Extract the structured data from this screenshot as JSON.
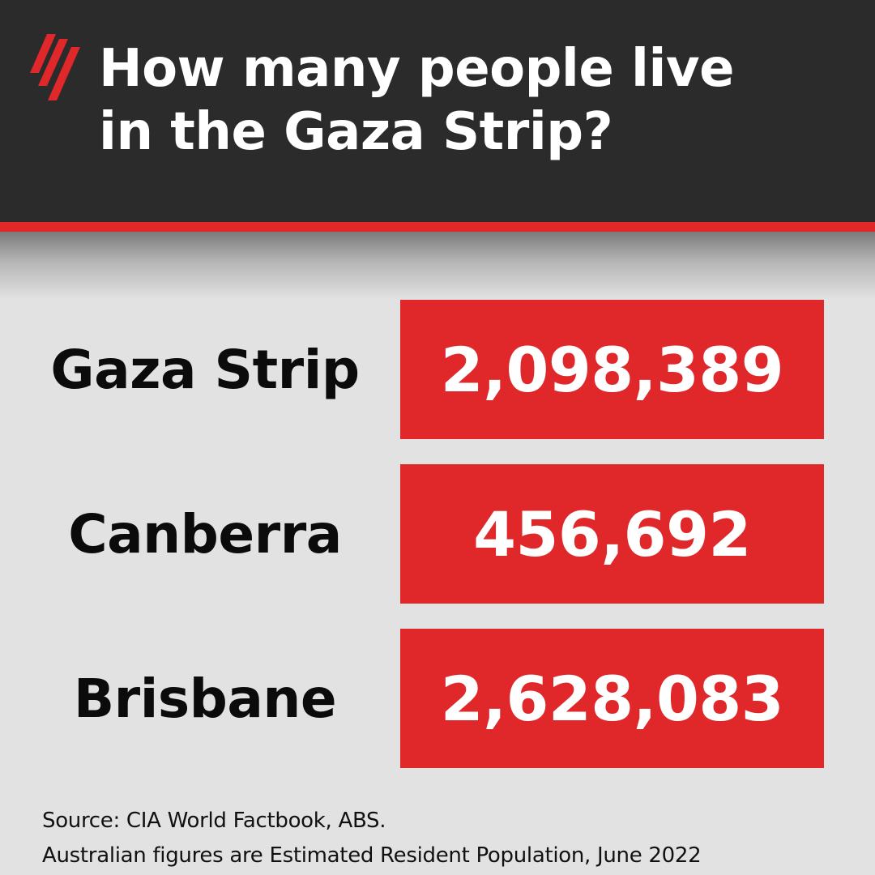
{
  "header": {
    "title_line1": "How many people live",
    "title_line2": "in the Gaza Strip?",
    "logo_icon": "sbs-logo-icon"
  },
  "colors": {
    "header_bg": "#2b2b2b",
    "accent_red": "#e0282b",
    "page_bg": "#e2e2e2",
    "label_text": "#0b0b0b",
    "value_text": "#ffffff"
  },
  "chart_data": {
    "type": "table",
    "title": "How many people live in the Gaza Strip?",
    "rows": [
      {
        "label": "Gaza Strip",
        "value": 2098389,
        "display": "2,098,389"
      },
      {
        "label": "Canberra",
        "value": 456692,
        "display": "456,692"
      },
      {
        "label": "Brisbane",
        "value": 2628083,
        "display": "2,628,083"
      }
    ]
  },
  "footer": {
    "source": "Source: CIA World Factbook, ABS.",
    "note": "Australian figures are Estimated Resident Population, June 2022"
  }
}
